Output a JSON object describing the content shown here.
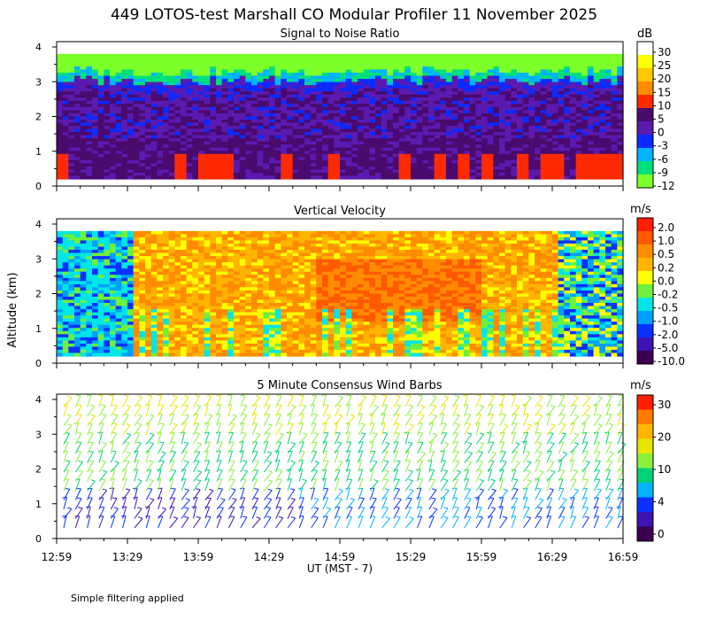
{
  "title": "449 LOTOS-test Marshall CO Modular Profiler 11 November 2025",
  "y_axis_label": "Altitude (km)",
  "footer_note": "Simple filtering applied",
  "chart_data": [
    {
      "type": "heatmap",
      "title": "Signal to Noise Ratio",
      "units": "dB",
      "ylim": [
        0,
        4
      ],
      "y_ticks": [
        "0",
        "1",
        "2",
        "3",
        "4"
      ],
      "x_range": [
        "12:59",
        "16:59"
      ],
      "colorbar": {
        "labels": [
          "30",
          "25",
          "20",
          "15",
          "10",
          "5",
          "0",
          "-3",
          "-6",
          "-9",
          "-12"
        ],
        "colors": [
          "#ffffff",
          "#ffff00",
          "#ffc800",
          "#ff8c00",
          "#ff2a00",
          "#4a0a6e",
          "#5a1ab0",
          "#0a2aff",
          "#00b4ff",
          "#00e07a",
          "#7dff2a"
        ]
      }
    },
    {
      "type": "heatmap",
      "title": "Vertical Velocity",
      "units": "m/s",
      "ylim": [
        0,
        4
      ],
      "y_ticks": [
        "0",
        "1",
        "2",
        "3",
        "4"
      ],
      "x_range": [
        "12:59",
        "16:59"
      ],
      "colorbar": {
        "labels": [
          "2.0",
          "1.0",
          "0.5",
          "0.2",
          "0.0",
          "-0.2",
          "-0.5",
          "-1.0",
          "-2.0",
          "-5.0",
          "-10.0"
        ],
        "colors": [
          "#ff1e00",
          "#ff5a00",
          "#ff8c00",
          "#ffb400",
          "#ffff00",
          "#6ef03c",
          "#00e6e6",
          "#00a0ff",
          "#0a32ff",
          "#3c14b4",
          "#3c0050"
        ]
      }
    },
    {
      "type": "scatter",
      "title": "5 Minute Consensus Wind Barbs",
      "units": "m/s",
      "ylim": [
        0,
        4
      ],
      "y_ticks": [
        "0",
        "1",
        "2",
        "3",
        "4"
      ],
      "x_ticks": [
        "12:59",
        "13:29",
        "13:59",
        "14:29",
        "14:59",
        "15:29",
        "15:59",
        "16:29",
        "16:59"
      ],
      "xlabel": "UT  (MST - 7)",
      "colorbar": {
        "labels": [
          "30",
          "20",
          "10",
          "4",
          "0"
        ],
        "colors": [
          "#ff1e00",
          "#ff7a00",
          "#ffb400",
          "#e6e600",
          "#8cf03c",
          "#00d278",
          "#00b4ff",
          "#0a32ff",
          "#3c14b4",
          "#3c0050"
        ]
      }
    }
  ]
}
